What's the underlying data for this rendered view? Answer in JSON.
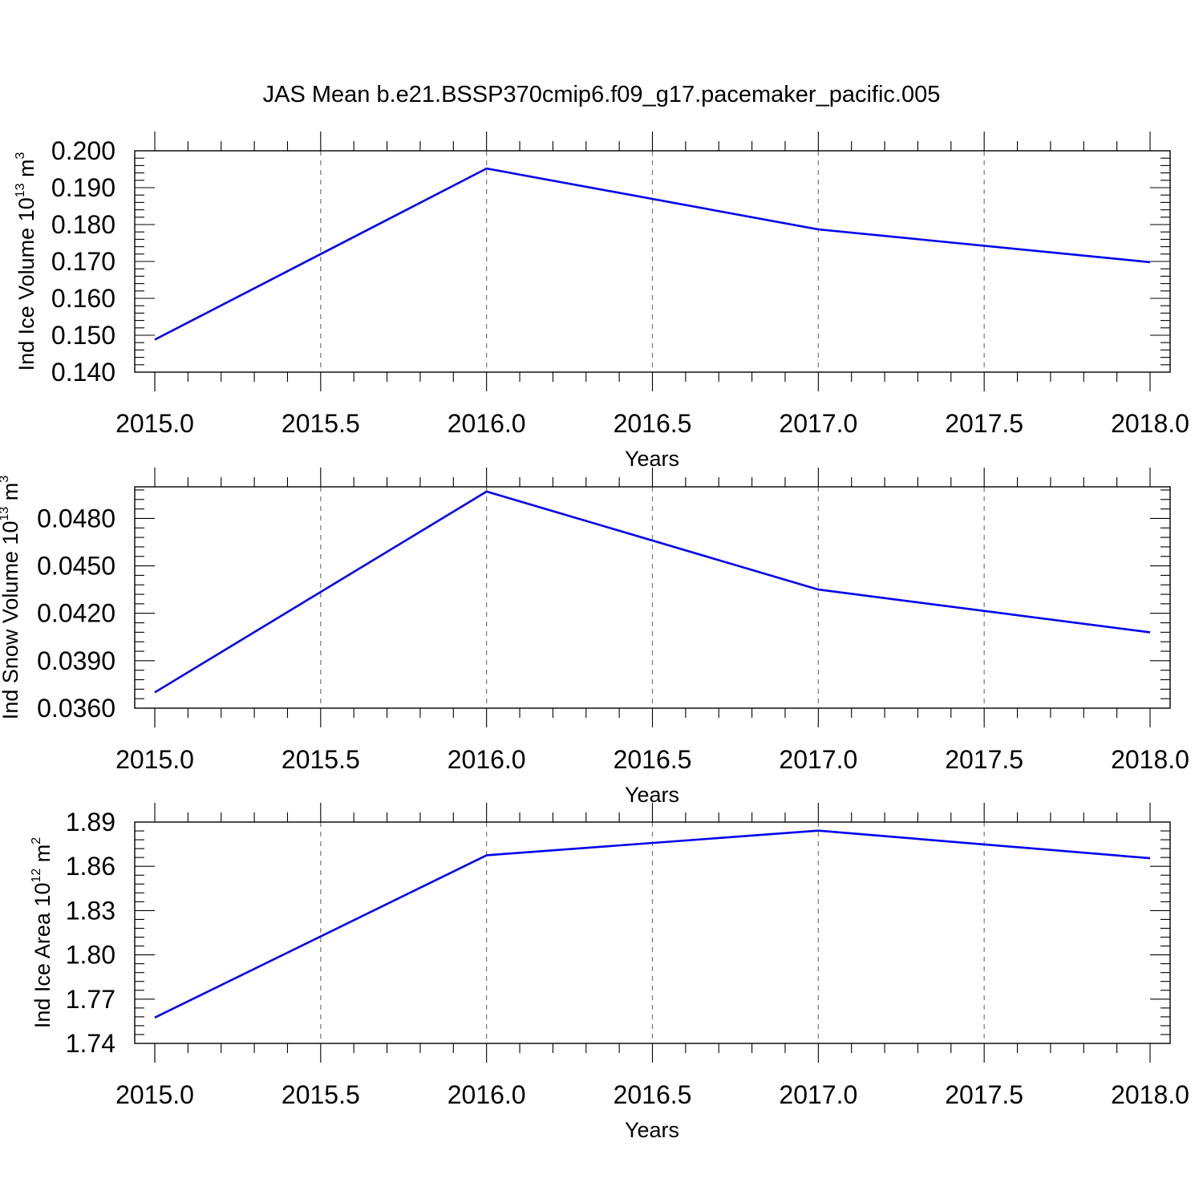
{
  "title": "JAS Mean b.e21.BSSP370cmip6.f09_g17.pacemaker_pacific.005",
  "colors": {
    "line": "#0000ee",
    "grid": "#777777",
    "axis": "#000000"
  },
  "chart_data": [
    {
      "type": "line",
      "xlabel": "Years",
      "ylabel": {
        "text": "Ind Ice Volume 10",
        "sup1": "13",
        "mid": " m",
        "sup2": "3"
      },
      "xlim": [
        2015.0,
        2018.0
      ],
      "ylim": [
        0.14,
        0.2
      ],
      "x_ticks": [
        "2015.0",
        "2015.5",
        "2016.0",
        "2016.5",
        "2017.0",
        "2017.5",
        "2018.0"
      ],
      "y_ticks": [
        "0.140",
        "0.150",
        "0.160",
        "0.170",
        "0.180",
        "0.190",
        "0.200"
      ],
      "y_tick_values": [
        0.14,
        0.15,
        0.16,
        0.17,
        0.18,
        0.19,
        0.2
      ],
      "y_minor_step": 0.002,
      "x": [
        2015,
        2016,
        2017,
        2018
      ],
      "series": [
        {
          "values": [
            0.1488,
            0.1952,
            0.1787,
            0.1698
          ]
        }
      ]
    },
    {
      "type": "line",
      "xlabel": "Years",
      "ylabel": {
        "text": "Ind Snow Volume 10",
        "sup1": "13",
        "mid": " m",
        "sup2": "3"
      },
      "xlim": [
        2015.0,
        2018.0
      ],
      "ylim": [
        0.036,
        0.05
      ],
      "x_ticks": [
        "2015.0",
        "2015.5",
        "2016.0",
        "2016.5",
        "2017.0",
        "2017.5",
        "2018.0"
      ],
      "y_ticks": [
        "0.0360",
        "0.0390",
        "0.0420",
        "0.0450",
        "0.0480"
      ],
      "y_tick_values": [
        0.036,
        0.039,
        0.042,
        0.045,
        0.048
      ],
      "y_minor_step": 0.0006,
      "x": [
        2015,
        2016,
        2017,
        2018
      ],
      "series": [
        {
          "values": [
            0.037,
            0.0497,
            0.0435,
            0.0408
          ]
        }
      ]
    },
    {
      "type": "line",
      "xlabel": "Years",
      "ylabel": {
        "text": "Ind Ice Area 10",
        "sup1": "12",
        "mid": " m",
        "sup2": "2"
      },
      "xlim": [
        2015.0,
        2018.0
      ],
      "ylim": [
        1.74,
        1.89
      ],
      "x_ticks": [
        "2015.0",
        "2015.5",
        "2016.0",
        "2016.5",
        "2017.0",
        "2017.5",
        "2018.0"
      ],
      "y_ticks": [
        "1.74",
        "1.77",
        "1.80",
        "1.83",
        "1.86",
        "1.89"
      ],
      "y_tick_values": [
        1.74,
        1.77,
        1.8,
        1.83,
        1.86,
        1.89
      ],
      "y_minor_step": 0.006,
      "x": [
        2015,
        2016,
        2017,
        2018
      ],
      "series": [
        {
          "values": [
            1.7575,
            1.8675,
            1.8842,
            1.8655
          ]
        }
      ]
    }
  ]
}
